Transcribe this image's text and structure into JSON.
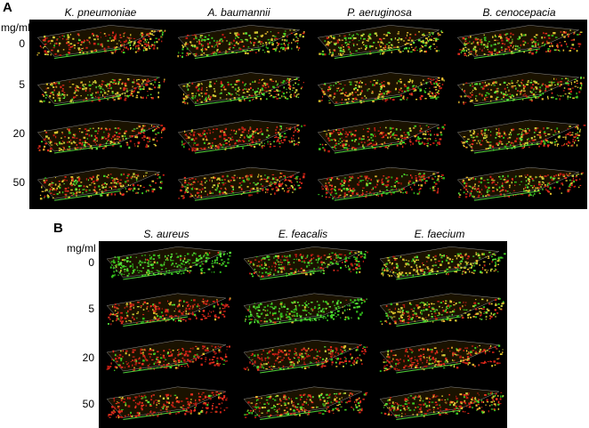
{
  "panel_a": {
    "label": "A",
    "unit": "mg/ml",
    "concentrations": [
      "0",
      "5",
      "20",
      "50"
    ],
    "species": [
      "K. pneumoniae",
      "A. baumannii",
      "P. aeruginosa",
      "B. cenocepacia"
    ]
  },
  "panel_b": {
    "label": "B",
    "unit": "mg/ml",
    "concentrations": [
      "0",
      "5",
      "20",
      "50"
    ],
    "species": [
      "S. aureus",
      "E. feacalis",
      "E. faecium"
    ]
  }
}
